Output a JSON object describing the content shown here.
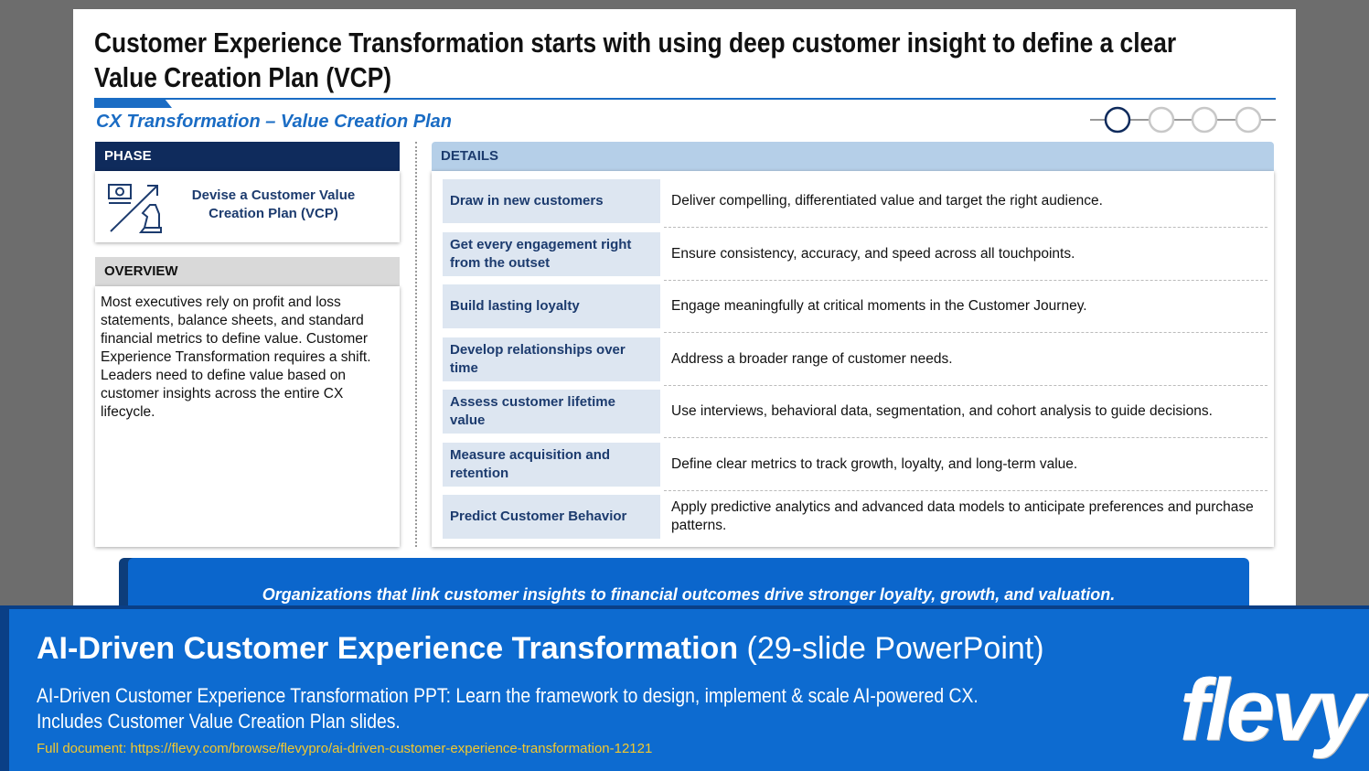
{
  "slide": {
    "title": "Customer Experience Transformation starts with using deep customer insight to define a clear Value Creation Plan (VCP)",
    "subtitle": "CX Transformation – Value Creation Plan",
    "phase": {
      "header": "PHASE",
      "label": "Devise a Customer Value Creation Plan (VCP)"
    },
    "overview": {
      "header": "OVERVIEW",
      "text": "Most executives rely on profit and loss statements, balance sheets, and standard financial metrics to define value. Customer Experience Transformation requires a shift. Leaders need to define value based on customer insights across the entire CX lifecycle."
    },
    "details": {
      "header": "DETAILS",
      "rows": [
        {
          "label": "Draw in new customers",
          "text": "Deliver compelling, differentiated value and target the right audience."
        },
        {
          "label": "Get every engagement right from the outset",
          "text": "Ensure consistency, accuracy, and speed across all touchpoints."
        },
        {
          "label": "Build lasting loyalty",
          "text": "Engage meaningfully at critical moments in the Customer Journey."
        },
        {
          "label": "Develop relationships over time",
          "text": "Address a broader range of customer needs."
        },
        {
          "label": "Assess customer lifetime value",
          "text": "Use interviews, behavioral data, segmentation, and cohort analysis to guide decisions."
        },
        {
          "label": "Measure acquisition and retention",
          "text": "Define clear metrics to track growth, loyalty, and long-term value."
        },
        {
          "label": "Predict Customer Behavior",
          "text": "Apply predictive analytics and advanced data models to anticipate preferences and purchase patterns."
        }
      ]
    },
    "callout": "Organizations that link customer insights to financial outcomes drive stronger loyalty, growth, and valuation."
  },
  "banner": {
    "title": "AI-Driven Customer Experience Transformation",
    "title_suffix": "(29-slide PowerPoint)",
    "description": [
      "AI-Driven Customer Experience Transformation PPT: Learn the framework to design, implement & scale AI-powered CX.",
      "Includes Customer Value Creation Plan slides."
    ],
    "link": "Full document: https://flevy.com/browse/flevypro/ai-driven-customer-experience-transformation-12121",
    "logo": "flevy"
  }
}
